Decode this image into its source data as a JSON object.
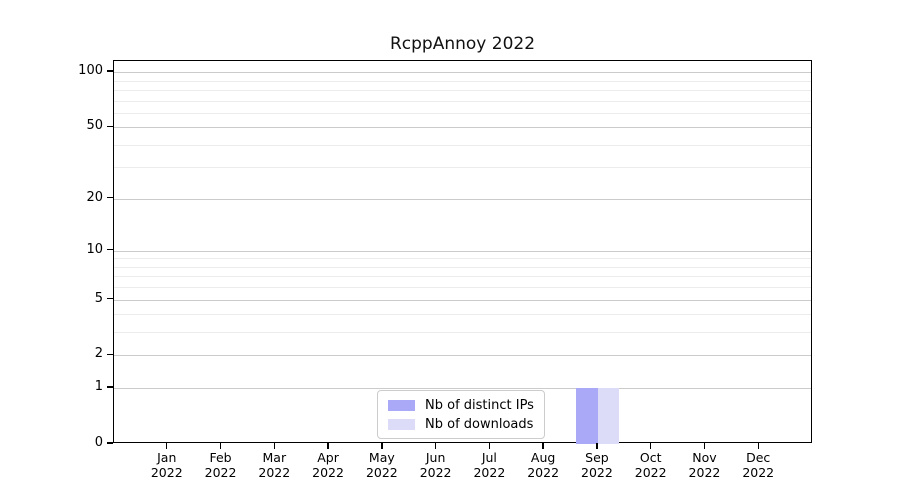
{
  "chart_data": {
    "type": "bar",
    "title": "RcppAnnoy 2022",
    "categories": [
      "Jan 2022",
      "Feb 2022",
      "Mar 2022",
      "Apr 2022",
      "May 2022",
      "Jun 2022",
      "Jul 2022",
      "Aug 2022",
      "Sep 2022",
      "Oct 2022",
      "Nov 2022",
      "Dec 2022"
    ],
    "series": [
      {
        "name": "Nb of distinct IPs",
        "color": "#a9a9f8",
        "values": [
          0,
          0,
          0,
          0,
          0,
          0,
          0,
          0,
          1,
          0,
          0,
          0
        ]
      },
      {
        "name": "Nb of downloads",
        "color": "#dcdcf8",
        "values": [
          0,
          0,
          0,
          0,
          0,
          0,
          0,
          0,
          1,
          0,
          0,
          0
        ]
      }
    ],
    "xlabel": "",
    "ylabel": "",
    "y_scale": "log1p",
    "ylim": [
      0,
      115
    ],
    "y_ticks": [
      0,
      1,
      2,
      5,
      10,
      20,
      50,
      100
    ],
    "y_gridlines_major": [
      1,
      2,
      5,
      10,
      20,
      50,
      100
    ],
    "y_gridlines_minor": [
      3,
      4,
      6,
      7,
      8,
      9,
      30,
      40,
      60,
      70,
      80,
      90
    ],
    "grid": "on",
    "legend_position": "lower center"
  },
  "colors": {
    "bar_distinct_ips": "#a9a9f8",
    "bar_downloads": "#dcdcf8",
    "grid_major": "#cbcbcb",
    "grid_minor": "#ececec",
    "spine": "#000000",
    "background": "#ffffff"
  }
}
